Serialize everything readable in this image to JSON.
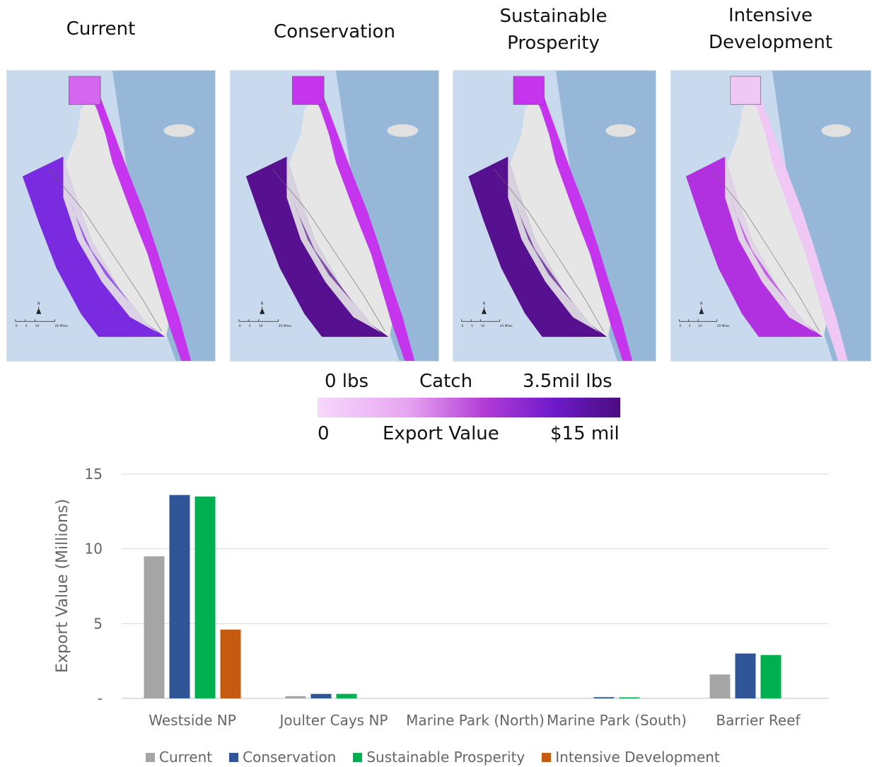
{
  "scenarios": [
    {
      "title": "Current"
    },
    {
      "title": "Conservation"
    },
    {
      "title": "Sustainable Prosperity"
    },
    {
      "title": "Intensive Development"
    }
  ],
  "map_colors": {
    "current": {
      "west": "#7a2be0",
      "east": "#c535ee",
      "north": "#d466f0"
    },
    "conservation": {
      "west": "#57108f",
      "east": "#c535ee",
      "north": "#c535ee"
    },
    "sustainable_prosperity": {
      "west": "#57108f",
      "east": "#c535ee",
      "north": "#c535ee"
    },
    "intensive_development": {
      "west": "#b131e0",
      "east": "#efc8f6",
      "north": "#efc8f6"
    }
  },
  "scale_bar": {
    "ticks": [
      "0",
      "5",
      "10",
      "20 Miles"
    ],
    "north": "N"
  },
  "legend": {
    "catch_label": "Catch",
    "catch_min": "0 lbs",
    "catch_max": "3.5mil lbs",
    "export_label": "Export Value",
    "export_min": "0",
    "export_max": "$15 mil"
  },
  "chart_data": {
    "type": "bar",
    "ylabel": "Export Value  (Millions)",
    "ylim": [
      0,
      15
    ],
    "y_ticks": [
      "-",
      "5",
      "10",
      "15"
    ],
    "grid": true,
    "legend_position": "bottom",
    "categories": [
      "Westside NP",
      "Joulter Cays NP",
      "Marine Park (North)",
      "Marine Park (South)",
      "Barrier Reef"
    ],
    "series": [
      {
        "name": "Current",
        "color": "#a5a5a5",
        "values": [
          9.5,
          0.15,
          0,
          0,
          1.6
        ]
      },
      {
        "name": "Conservation",
        "color": "#2f5597",
        "values": [
          13.6,
          0.3,
          0,
          0.08,
          3.0
        ]
      },
      {
        "name": "Sustainable Prosperity",
        "color": "#00b050",
        "values": [
          13.5,
          0.3,
          0,
          0.07,
          2.9
        ]
      },
      {
        "name": "Intensive Development",
        "color": "#c55a11",
        "values": [
          4.6,
          0,
          0,
          0,
          0
        ]
      }
    ]
  }
}
